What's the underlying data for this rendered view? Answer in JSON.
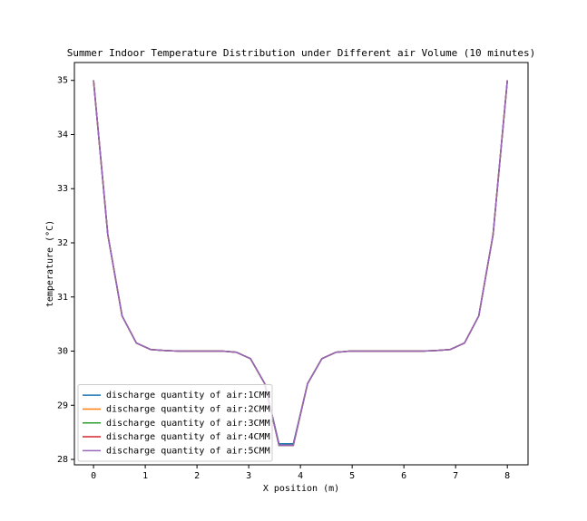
{
  "chart_data": {
    "type": "line",
    "title": "Summer Indoor Temperature Distribution under Different air Volume (10 minutes)",
    "x_label": "X position (m)",
    "y_label": "temperature (°C)",
    "x": [
      0,
      0.276,
      0.552,
      0.828,
      1.103,
      1.379,
      1.655,
      1.931,
      2.207,
      2.483,
      2.759,
      3.034,
      3.31,
      3.586,
      3.862,
      4.138,
      4.414,
      4.69,
      4.966,
      5.241,
      5.517,
      5.793,
      6.069,
      6.345,
      6.621,
      6.897,
      7.172,
      7.448,
      7.724,
      8
    ],
    "series": [
      {
        "name": "discharge quantity of air:1CMM",
        "color": "#1f77b4",
        "values": [
          35,
          32.15,
          30.65,
          30.15,
          30.03,
          30.01,
          30.0,
          30.0,
          30.0,
          30.0,
          29.98,
          29.86,
          29.4,
          28.29,
          28.29,
          29.4,
          29.86,
          29.98,
          30.0,
          30.0,
          30.0,
          30.0,
          30.0,
          30.0,
          30.01,
          30.03,
          30.15,
          30.65,
          32.15,
          35
        ]
      },
      {
        "name": "discharge quantity of air:2CMM",
        "color": "#ff7f0e",
        "values": [
          35,
          32.15,
          30.65,
          30.15,
          30.03,
          30.01,
          30.0,
          30.0,
          30.0,
          30.0,
          29.98,
          29.86,
          29.4,
          28.26,
          28.26,
          29.4,
          29.86,
          29.98,
          30.0,
          30.0,
          30.0,
          30.0,
          30.0,
          30.0,
          30.01,
          30.03,
          30.15,
          30.65,
          32.15,
          35
        ]
      },
      {
        "name": "discharge quantity of air:3CMM",
        "color": "#2ca02c",
        "values": [
          35,
          32.15,
          30.65,
          30.15,
          30.03,
          30.01,
          30.0,
          30.0,
          30.0,
          30.0,
          29.98,
          29.86,
          29.4,
          28.26,
          28.26,
          29.4,
          29.86,
          29.98,
          30.0,
          30.0,
          30.0,
          30.0,
          30.0,
          30.0,
          30.01,
          30.03,
          30.15,
          30.65,
          32.15,
          35
        ]
      },
      {
        "name": "discharge quantity of air:4CMM",
        "color": "#d62728",
        "values": [
          35,
          32.15,
          30.65,
          30.15,
          30.03,
          30.01,
          30.0,
          30.0,
          30.0,
          30.0,
          29.98,
          29.86,
          29.4,
          28.26,
          28.26,
          29.4,
          29.86,
          29.98,
          30.0,
          30.0,
          30.0,
          30.0,
          30.0,
          30.0,
          30.01,
          30.03,
          30.15,
          30.65,
          32.15,
          35
        ]
      },
      {
        "name": "discharge quantity of air:5CMM",
        "color": "#9467bd",
        "values": [
          35,
          32.15,
          30.65,
          30.15,
          30.03,
          30.01,
          30.0,
          30.0,
          30.0,
          30.0,
          29.98,
          29.86,
          29.4,
          28.26,
          28.26,
          29.4,
          29.86,
          29.98,
          30.0,
          30.0,
          30.0,
          30.0,
          30.0,
          30.0,
          30.01,
          30.03,
          30.15,
          30.65,
          32.15,
          35
        ]
      }
    ],
    "xlim": [
      -0.37,
      8.4
    ],
    "xticks": [
      0,
      1,
      2,
      3,
      4,
      5,
      6,
      7,
      8
    ],
    "ylim": [
      27.9,
      35.33
    ],
    "yticks": [
      28,
      29,
      30,
      31,
      32,
      33,
      34,
      35
    ],
    "grid": false,
    "legend": "lower left"
  }
}
